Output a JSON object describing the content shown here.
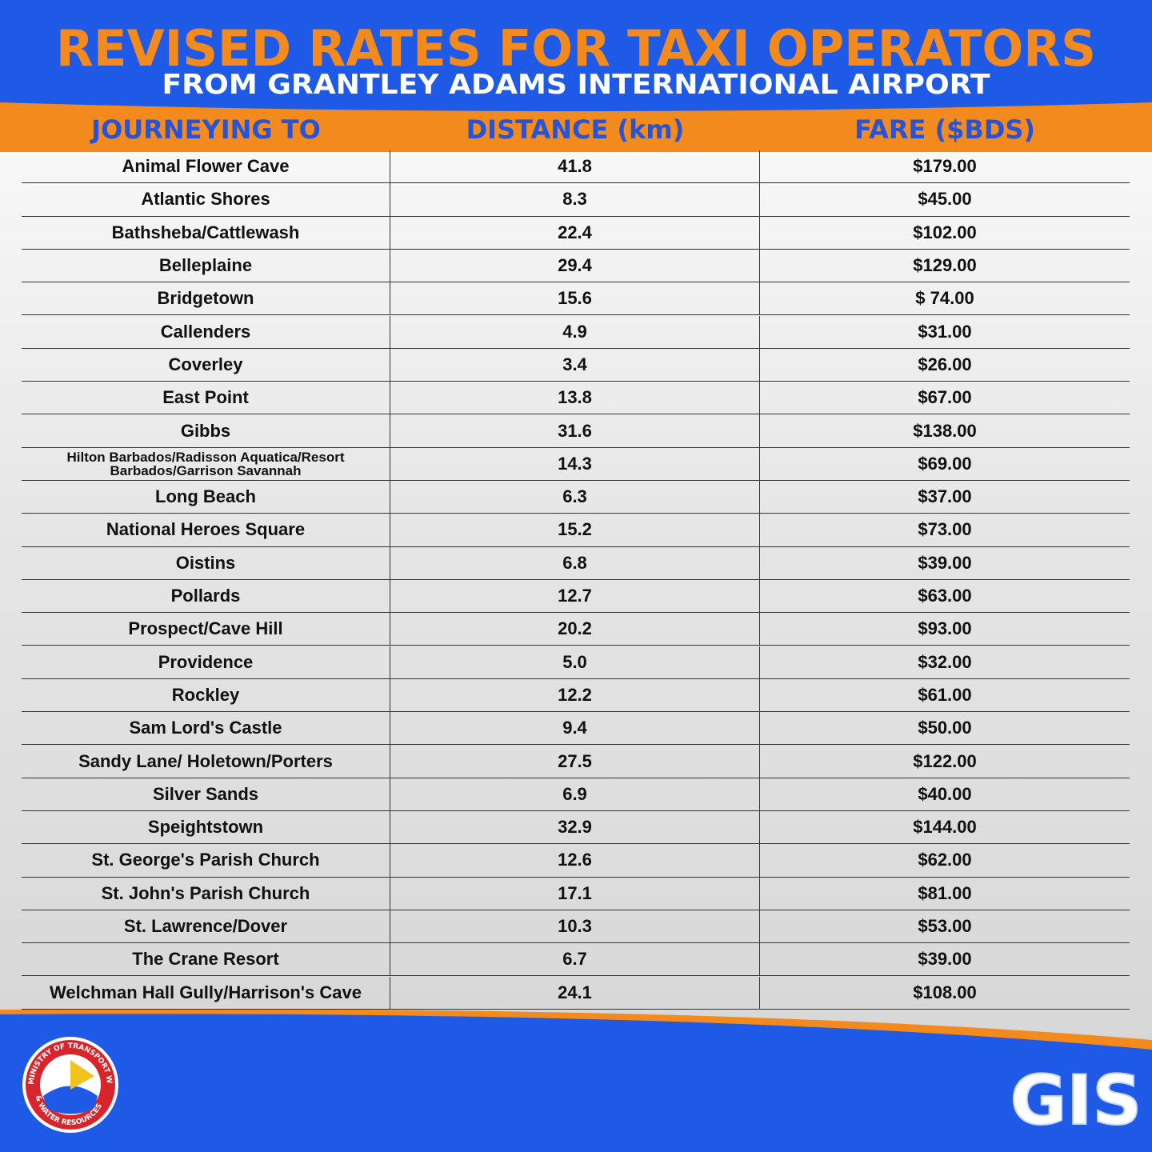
{
  "header": {
    "title": "REVISED RATES FOR TAXI OPERATORS",
    "subtitle": "FROM GRANTLEY ADAMS INTERNATIONAL AIRPORT"
  },
  "table": {
    "columns": [
      "JOURNEYING TO",
      "DISTANCE (km)",
      "FARE ($BDS)"
    ],
    "rows": [
      [
        "Animal Flower Cave",
        "41.8",
        "$179.00"
      ],
      [
        "Atlantic Shores",
        "8.3",
        "$45.00"
      ],
      [
        "Bathsheba/Cattlewash",
        "22.4",
        "$102.00"
      ],
      [
        "Belleplaine",
        "29.4",
        "$129.00"
      ],
      [
        "Bridgetown",
        "15.6",
        "$ 74.00"
      ],
      [
        "Callenders",
        "4.9",
        "$31.00"
      ],
      [
        "Coverley",
        "3.4",
        "$26.00"
      ],
      [
        "East Point",
        "13.8",
        "$67.00"
      ],
      [
        "Gibbs",
        "31.6",
        "$138.00"
      ],
      [
        "Hilton Barbados/Radisson Aquatica/Resort Barbados/Garrison Savannah",
        "14.3",
        "$69.00"
      ],
      [
        "Long Beach",
        "6.3",
        "$37.00"
      ],
      [
        "National Heroes Square",
        "15.2",
        "$73.00"
      ],
      [
        "Oistins",
        "6.8",
        "$39.00"
      ],
      [
        "Pollards",
        "12.7",
        "$63.00"
      ],
      [
        "Prospect/Cave Hill",
        "20.2",
        "$93.00"
      ],
      [
        "Providence",
        "5.0",
        "$32.00"
      ],
      [
        "Rockley",
        "12.2",
        "$61.00"
      ],
      [
        "Sam Lord's Castle",
        "9.4",
        "$50.00"
      ],
      [
        "Sandy Lane/ Holetown/Porters",
        "27.5",
        "$122.00"
      ],
      [
        "Silver Sands",
        "6.9",
        "$40.00"
      ],
      [
        "Speightstown",
        "32.9",
        "$144.00"
      ],
      [
        "St. George's Parish Church",
        "12.6",
        "$62.00"
      ],
      [
        "St. John's Parish Church",
        "17.1",
        "$81.00"
      ],
      [
        "St. Lawrence/Dover",
        "10.3",
        "$53.00"
      ],
      [
        "The Crane Resort",
        "6.7",
        "$39.00"
      ],
      [
        "Welchman Hall Gully/Harrison's Cave",
        "24.1",
        "$108.00"
      ]
    ]
  },
  "logos": {
    "ministry_top": "MINISTRY OF TRANSPORT WORKS",
    "ministry_bottom": "& WATER RESOURCES",
    "gis": "GIS"
  }
}
